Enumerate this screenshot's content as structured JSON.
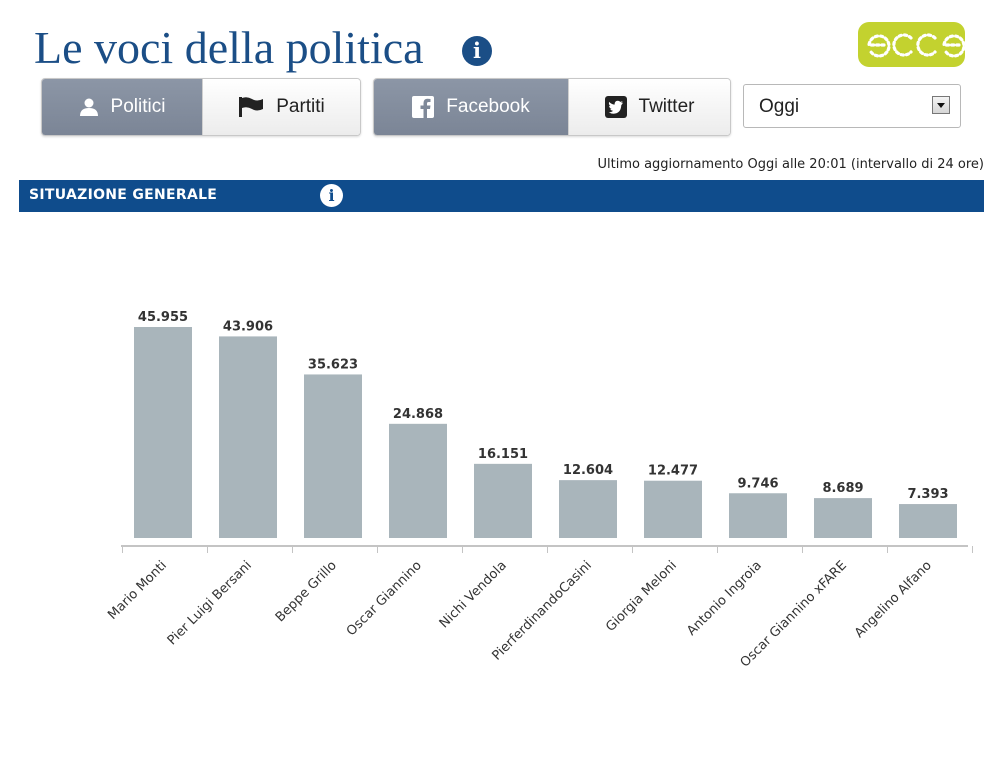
{
  "header": {
    "title": "Le voci della politica",
    "title_info_icon": "info-icon",
    "logo_text": "ecce",
    "logo_color": "#c3d22f"
  },
  "toolbar": {
    "entity_tabs": [
      {
        "label": "Politici",
        "icon": "person-icon",
        "active": true
      },
      {
        "label": "Partiti",
        "icon": "flag-icon",
        "active": false
      }
    ],
    "source_tabs": [
      {
        "label": "Facebook",
        "icon": "facebook-icon",
        "active": true
      },
      {
        "label": "Twitter",
        "icon": "twitter-icon",
        "active": false
      }
    ],
    "period_select": {
      "value": "Oggi"
    }
  },
  "update_text": "Ultimo aggiornamento Oggi alle 20:01 (intervallo di 24 ore)",
  "section": {
    "title": "SITUAZIONE GENERALE",
    "info_icon": "info-icon",
    "color": "#0f4c8c"
  },
  "chart_data": {
    "type": "bar",
    "categories": [
      "Mario Monti",
      "Pier Luigi Bersani",
      "Beppe Grillo",
      "Oscar Giannino",
      "Nichi Vendola",
      "PierferdinandoCasini",
      "Giorgia Meloni",
      "Antonio Ingroia",
      "Oscar Giannino xFARE",
      "Angelino Alfano"
    ],
    "values": [
      45955,
      43906,
      35623,
      24868,
      16151,
      12604,
      12477,
      9746,
      8689,
      7393
    ],
    "value_labels": [
      "45.955",
      "43.906",
      "35.623",
      "24.868",
      "16.151",
      "12.604",
      "12.477",
      "9.746",
      "8.689",
      "7.393"
    ],
    "ylim": [
      0,
      45955
    ],
    "grid": false,
    "bar_color": "#a9b5bb"
  }
}
